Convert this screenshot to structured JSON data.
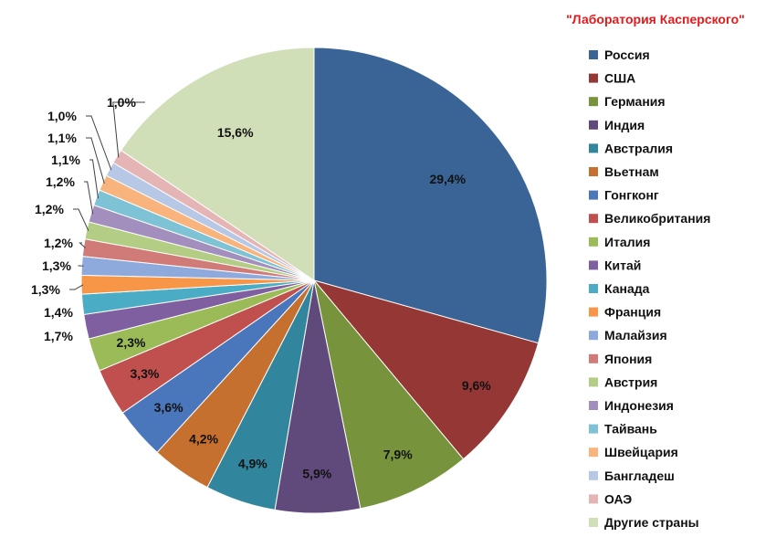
{
  "chart_data": {
    "type": "pie",
    "title": "\"Лаборатория Касперского\"",
    "title_color": "#e31a1c",
    "unit": "%",
    "legend_position": "right",
    "slices": [
      {
        "label": "Россия",
        "value": 29.4,
        "display": "29,4%",
        "color": "#3a6496"
      },
      {
        "label": "США",
        "value": 9.6,
        "display": "9,6%",
        "color": "#953735"
      },
      {
        "label": "Германия",
        "value": 7.9,
        "display": "7,9%",
        "color": "#77933c"
      },
      {
        "label": "Индия",
        "value": 5.9,
        "display": "5,9%",
        "color": "#604a7b"
      },
      {
        "label": "Австралия",
        "value": 4.9,
        "display": "4,9%",
        "color": "#31859c"
      },
      {
        "label": "Вьетнам",
        "value": 4.2,
        "display": "4,2%",
        "color": "#c5702e"
      },
      {
        "label": "Гонгконг",
        "value": 3.6,
        "display": "3,6%",
        "color": "#4a76bb"
      },
      {
        "label": "Великобритания",
        "value": 3.3,
        "display": "3,3%",
        "color": "#c0504d"
      },
      {
        "label": "Италия",
        "value": 2.3,
        "display": "2,3%",
        "color": "#9bbb59"
      },
      {
        "label": "Китай",
        "value": 1.7,
        "display": "1,7%",
        "color": "#7f5f9f"
      },
      {
        "label": "Канада",
        "value": 1.4,
        "display": "1,4%",
        "color": "#4bacc6"
      },
      {
        "label": "Франция",
        "value": 1.3,
        "display": "1,3%",
        "color": "#f79646"
      },
      {
        "label": "Малайзия",
        "value": 1.3,
        "display": "1,3%",
        "color": "#8ea9db"
      },
      {
        "label": "Япония",
        "value": 1.2,
        "display": "1,2%",
        "color": "#d07b78"
      },
      {
        "label": "Австрия",
        "value": 1.2,
        "display": "1,2%",
        "color": "#b3cd84"
      },
      {
        "label": "Индонезия",
        "value": 1.2,
        "display": "1,2%",
        "color": "#a28fbd"
      },
      {
        "label": "Тайвань",
        "value": 1.1,
        "display": "1,1%",
        "color": "#7ec2d6"
      },
      {
        "label": "Швейцария",
        "value": 1.1,
        "display": "1,1%",
        "color": "#f9b47e"
      },
      {
        "label": "Бангладеш",
        "value": 1.0,
        "display": "1,0%",
        "color": "#b7c8e6"
      },
      {
        "label": "ОАЭ",
        "value": 1.0,
        "display": "1,0%",
        "color": "#e4b5b4"
      },
      {
        "label": "Другие страны",
        "value": 15.6,
        "display": "15,6%",
        "color": "#d1dfb9"
      }
    ]
  }
}
